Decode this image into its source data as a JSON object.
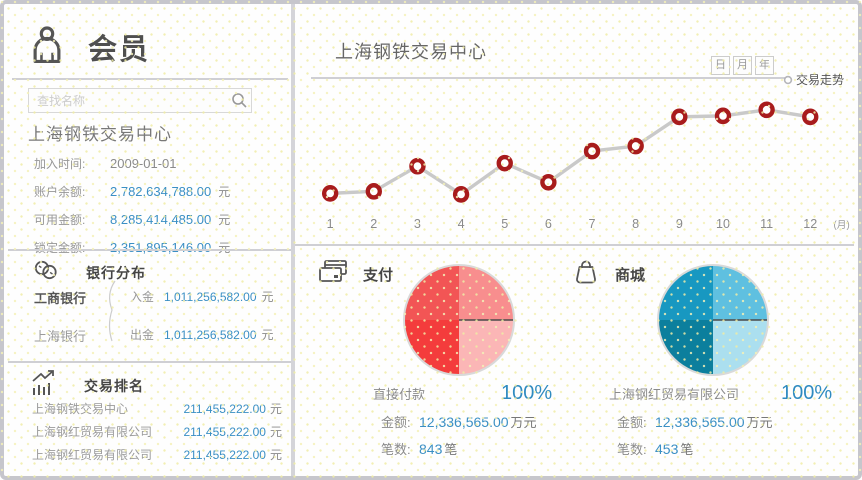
{
  "colors": {
    "accent_blue": "#3a8fc4",
    "percent_blue": "#2f8bc0",
    "marker_red": "#a81c1c",
    "trend_line_gray": "#c9c9c9",
    "pie_pay_quadrants_cw_from_top": [
      "#f88e8e",
      "#fbb6b6",
      "#f43c3c",
      "#f25555"
    ],
    "pie_mall_quadrants_cw_from_top": [
      "#5fc0e0",
      "#abdfef",
      "#0c7f9d",
      "#1898c1"
    ]
  },
  "sidebar": {
    "title": "会员",
    "search_placeholder": "查找名称",
    "member_name": "上海钢铁交易中心",
    "fields": [
      {
        "label": "加入时间:",
        "value": "2009-01-01",
        "unit": ""
      },
      {
        "label": "账户余额:",
        "value": "2,782,634,788.00",
        "unit": "元"
      },
      {
        "label": "可用金额:",
        "value": "8,285,414,485.00",
        "unit": "元"
      },
      {
        "label": "锁定金额:",
        "value": "2,351,895,146.00",
        "unit": "元"
      }
    ],
    "bank_section": {
      "title": "银行分布",
      "banks": [
        "工商银行",
        "上海银行"
      ],
      "flows": [
        {
          "label": "入金",
          "value": "1,011,256,582.00",
          "unit": "元"
        },
        {
          "label": "出金",
          "value": "1,011,256,582.00",
          "unit": "元"
        }
      ]
    },
    "ranking_section": {
      "title": "交易排名",
      "rows": [
        {
          "name": "上海钢铁交易中心",
          "value": "211,455,222.00",
          "unit": "元"
        },
        {
          "name": "上海钢红贸易有限公司",
          "value": "211,455,222.00",
          "unit": "元"
        },
        {
          "name": "上海钢红贸易有限公司",
          "value": "211,455,222.00",
          "unit": "元"
        }
      ]
    }
  },
  "main": {
    "title": "上海钢铁交易中心",
    "period_buttons": [
      "日",
      "月",
      "年"
    ],
    "trend_label": "交易走势",
    "pay": {
      "title": "支付",
      "legend_name": "直接付款",
      "percent": "100%",
      "amount_label": "金额:",
      "amount": "12,336,565.00",
      "amount_unit": "万元",
      "count_label": "笔数:",
      "count": "843",
      "count_unit": "笔"
    },
    "mall": {
      "title": "商城",
      "legend_name": "上海钢红贸易有限公司",
      "percent": "100%",
      "amount_label": "金额:",
      "amount": "12,336,565.00",
      "amount_unit": "万元",
      "count_label": "笔数:",
      "count": "453",
      "count_unit": "笔"
    }
  },
  "chart_data": [
    {
      "type": "line",
      "title": "交易走势",
      "x": [
        1,
        2,
        3,
        4,
        5,
        6,
        7,
        8,
        9,
        10,
        11,
        12
      ],
      "x_unit": "(月)",
      "values": [
        11,
        13,
        38,
        10,
        41,
        22,
        53,
        58,
        87,
        88,
        94,
        87
      ],
      "ylim": [
        0,
        100
      ],
      "y_axis_visible": false,
      "grid": false,
      "marker": "ring"
    },
    {
      "type": "pie",
      "title": "支付",
      "slices": [
        {
          "label": "直接付款",
          "percent": 100
        }
      ],
      "note": "rendered as 4 equal decorative quadrants in shades of red"
    },
    {
      "type": "pie",
      "title": "商城",
      "slices": [
        {
          "label": "上海钢红贸易有限公司",
          "percent": 100
        }
      ],
      "note": "rendered as 4 equal decorative quadrants in shades of blue"
    }
  ]
}
